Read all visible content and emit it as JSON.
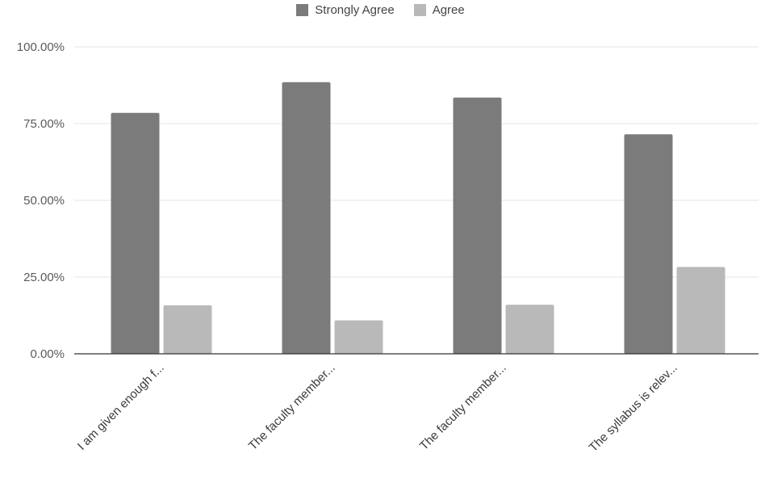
{
  "chart_data": {
    "type": "bar",
    "categories": [
      "I am given enough f...",
      "The faculty member...",
      "The faculty member...",
      "The syllabus is relev..."
    ],
    "series": [
      {
        "name": "Strongly Agree",
        "values": [
          78.5,
          88.5,
          83.5,
          71.5
        ],
        "color": "#7b7b7b"
      },
      {
        "name": "Agree",
        "values": [
          15.8,
          10.9,
          16.0,
          28.3
        ],
        "color": "#b9b9b9"
      }
    ],
    "ylim": [
      0,
      100
    ],
    "yticks": [
      "0.00%",
      "25.00%",
      "50.00%",
      "75.00%",
      "100.00%"
    ],
    "ytick_values": [
      0,
      25,
      50,
      75,
      100
    ],
    "grid": true,
    "legend_position": "top-center",
    "title": "",
    "xlabel": "",
    "ylabel": ""
  }
}
